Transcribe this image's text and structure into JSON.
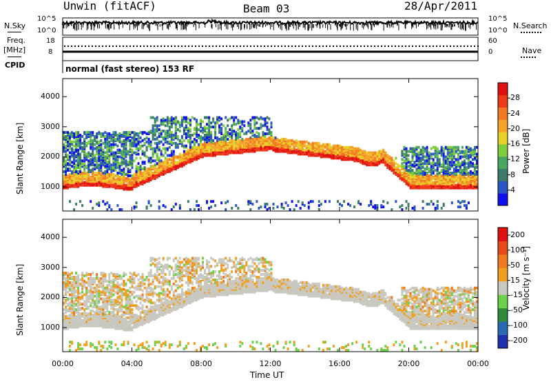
{
  "header": {
    "station": "Unwin (fitACF)",
    "beam": "Beam 03",
    "date": "28/Apr/2011"
  },
  "top_panel": {
    "left_labels": {
      "nsky": "N.Sky",
      "freq": "Freq.",
      "freq_unit": "[MHz]",
      "cpid": "CPID"
    },
    "right_labels": {
      "nsearch": "N.Search",
      "nave": "Nave"
    },
    "noise_ticks_left": [
      "10^5",
      "10^0"
    ],
    "noise_ticks_right": [
      "10^5",
      "10^0"
    ],
    "freq_ticks": [
      "18",
      "8"
    ],
    "nave_ticks": [
      "60",
      "0"
    ],
    "cpid_text": "normal (fast stereo) 153 RF"
  },
  "chart_data": [
    {
      "type": "heatmap",
      "title": "",
      "ylabel": "Slant Range [km]",
      "xlabel": "",
      "x_ticks": [
        "00:00",
        "04:00",
        "08:00",
        "12:00",
        "16:00",
        "20:00",
        "00:00"
      ],
      "y_ticks": [
        1000,
        2000,
        3000,
        4000
      ],
      "ylim": [
        200,
        4600
      ],
      "colorbar": {
        "label": "Power [dB]",
        "ticks": [
          "4",
          "8",
          "12",
          "16",
          "20",
          "24",
          "28"
        ],
        "colors": [
          "#1010ee",
          "#2a56c6",
          "#3c7a6a",
          "#49a860",
          "#7fce3c",
          "#e7d22a",
          "#f6a32a",
          "#f37a22",
          "#ee3a18",
          "#e01010"
        ]
      }
    },
    {
      "type": "heatmap",
      "title": "",
      "ylabel": "Slant Range [km]",
      "xlabel": "Time UT",
      "x_ticks": [
        "00:00",
        "04:00",
        "08:00",
        "12:00",
        "16:00",
        "20:00",
        "00:00"
      ],
      "y_ticks": [
        1000,
        2000,
        3000,
        4000
      ],
      "ylim": [
        200,
        4600
      ],
      "colorbar": {
        "label": "Velocity [m s⁻¹]",
        "ticks": [
          "200",
          "100",
          "50",
          "15",
          "-15",
          "-50",
          "-100",
          "-200"
        ],
        "colors": [
          "#1b2fb0",
          "#2a6ab3",
          "#2f8a3c",
          "#6bd04a",
          "#c8c8c0",
          "#f0a020",
          "#f07a20",
          "#e84a18",
          "#e01010"
        ]
      }
    }
  ]
}
